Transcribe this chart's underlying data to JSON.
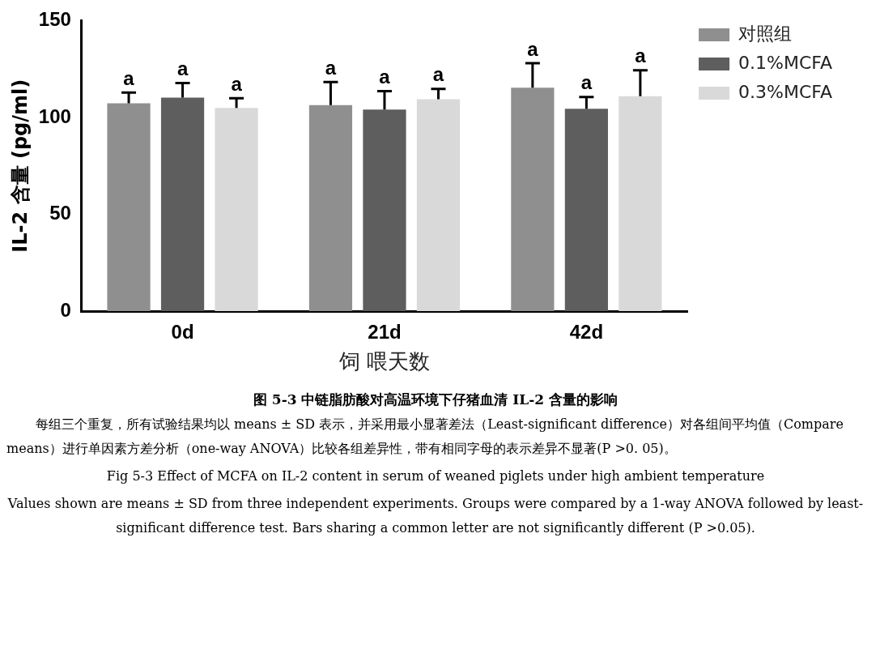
{
  "chart_data": {
    "type": "bar",
    "title": "图 5-3 中链脂肪酸对高温环境下仔猪血清 IL-2 含量的影响",
    "xlabel": "饲 喂天数",
    "ylabel": "IL-2 含量 (pg/ml)",
    "categories": [
      "0d",
      "21d",
      "42d"
    ],
    "series": [
      {
        "name": "对照组",
        "color": "#8f8f8f",
        "values": [
          107.3,
          106.3,
          115.3
        ],
        "errors": [
          5.5,
          12,
          12.7
        ],
        "value_labels": [
          "a",
          "a",
          "a"
        ]
      },
      {
        "name": "0.1%MCFA",
        "color": "#5e5e5e",
        "values": [
          110.2,
          104.1,
          104.5
        ],
        "errors": [
          7.5,
          9.5,
          6
        ],
        "value_labels": [
          "a",
          "a",
          "a"
        ]
      },
      {
        "name": "0.3%MCFA",
        "color": "#d9d9d9",
        "values": [
          104.9,
          109.4,
          111
        ],
        "errors": [
          5,
          5.3,
          13.3
        ],
        "value_labels": [
          "a",
          "a",
          "a"
        ]
      }
    ],
    "ylim": [
      0,
      150
    ],
    "yticks": [
      0,
      50,
      100,
      150
    ],
    "grid": false,
    "legend": "top right",
    "annotations": [
      "每组三个重复，所有试验结果均以 means ± SD 表示，并采用最小显著差法（Least-significant difference）对各组间平均值（Compare means）进行单因素方差分析（one-way ANOVA）比较各组差异性，带有相同字母的表示差异不显著(P >0. 05)。",
      "Fig 5-3 Effect of MCFA on IL-2 content in serum of weaned piglets under high ambient temperature",
      "Values shown are means ± SD from three independent experiments. Groups were compared by a 1-way ANOVA followed by least-significant difference test. Bars sharing a common letter are not significantly different (P >0.05)."
    ]
  }
}
